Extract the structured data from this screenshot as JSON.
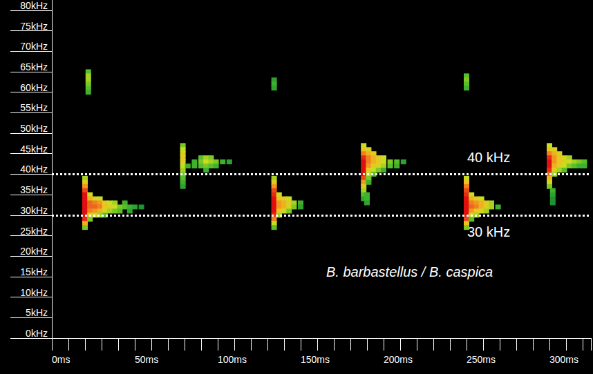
{
  "chart_data": {
    "type": "heatmap",
    "annotation": "B. barbastellus / B. caspica",
    "hlines": [
      {
        "y": 40,
        "label": "40 kHz"
      },
      {
        "y": 30,
        "label": "30 kHz"
      }
    ],
    "xlim": [
      0,
      325
    ],
    "xticks": [
      {
        "value": 0,
        "label": "0ms"
      },
      {
        "value": 50,
        "label": "50ms"
      },
      {
        "value": 100,
        "label": "100ms"
      },
      {
        "value": 150,
        "label": "150ms"
      },
      {
        "value": 200,
        "label": "200ms"
      },
      {
        "value": 250,
        "label": "250ms"
      },
      {
        "value": 300,
        "label": "300ms"
      }
    ],
    "ylim": [
      0,
      82.5
    ],
    "yticks": [
      {
        "value": 0,
        "label": "0kHz"
      },
      {
        "value": 5,
        "label": "5kHz"
      },
      {
        "value": 10,
        "label": "10kHz"
      },
      {
        "value": 15,
        "label": "15kHz"
      },
      {
        "value": 20,
        "label": "20kHz"
      },
      {
        "value": 25,
        "label": "25kHz"
      },
      {
        "value": 30,
        "label": "30kHz"
      },
      {
        "value": 35,
        "label": "35kHz"
      },
      {
        "value": 40,
        "label": "40kHz"
      },
      {
        "value": 45,
        "label": "45kHz"
      },
      {
        "value": 50,
        "label": "50kHz"
      },
      {
        "value": 55,
        "label": "55kHz"
      },
      {
        "value": 60,
        "label": "60kHz"
      },
      {
        "value": 65,
        "label": "65kHz"
      },
      {
        "value": 70,
        "label": "70kHz"
      },
      {
        "value": 75,
        "label": "75kHz"
      },
      {
        "value": 80,
        "label": "80kHz"
      }
    ],
    "zlim": [
      0,
      1
    ],
    "cells": [
      [
        20,
        39,
        0.45
      ],
      [
        20,
        38,
        0.6
      ],
      [
        20,
        37,
        0.75
      ],
      [
        20,
        36,
        0.9
      ],
      [
        20,
        35,
        1
      ],
      [
        20,
        34,
        1
      ],
      [
        20,
        33,
        1
      ],
      [
        20,
        32,
        1
      ],
      [
        20,
        31,
        1
      ],
      [
        20,
        30,
        1
      ],
      [
        20,
        29,
        0.95
      ],
      [
        20,
        28,
        0.7
      ],
      [
        20,
        27,
        0.4
      ],
      [
        23,
        35,
        0.5
      ],
      [
        23,
        34,
        0.7
      ],
      [
        23,
        33,
        0.85
      ],
      [
        23,
        32,
        0.85
      ],
      [
        23,
        31,
        0.8
      ],
      [
        23,
        30,
        0.6
      ],
      [
        23,
        29,
        0.4
      ],
      [
        26,
        34,
        0.55
      ],
      [
        26,
        33,
        0.8
      ],
      [
        26,
        32,
        0.85
      ],
      [
        26,
        31,
        0.75
      ],
      [
        26,
        30,
        0.5
      ],
      [
        29,
        34,
        0.5
      ],
      [
        29,
        33,
        0.75
      ],
      [
        29,
        32,
        0.8
      ],
      [
        29,
        31,
        0.7
      ],
      [
        29,
        30,
        0.45
      ],
      [
        32,
        33,
        0.6
      ],
      [
        32,
        32,
        0.65
      ],
      [
        32,
        31,
        0.55
      ],
      [
        32,
        30,
        0.35
      ],
      [
        35,
        33,
        0.5
      ],
      [
        35,
        32,
        0.55
      ],
      [
        35,
        31,
        0.45
      ],
      [
        38,
        33,
        0.45
      ],
      [
        38,
        32,
        0.5
      ],
      [
        38,
        31,
        0.4
      ],
      [
        41,
        32,
        0.4
      ],
      [
        41,
        31,
        0.35
      ],
      [
        44,
        33,
        0.3
      ],
      [
        44,
        32,
        0.35
      ],
      [
        47,
        32,
        0.3
      ],
      [
        47,
        31,
        0.25
      ],
      [
        50,
        32,
        0.25
      ],
      [
        54,
        32,
        0.2
      ],
      [
        22,
        65,
        0.35
      ],
      [
        22,
        64,
        0.45
      ],
      [
        22,
        63,
        0.45
      ],
      [
        22,
        62,
        0.4
      ],
      [
        22,
        61,
        0.35
      ],
      [
        22,
        60,
        0.3
      ],
      [
        79,
        47,
        0.4
      ],
      [
        79,
        46,
        0.5
      ],
      [
        79,
        45,
        0.55
      ],
      [
        79,
        44,
        0.6
      ],
      [
        79,
        43,
        0.55
      ],
      [
        79,
        42,
        0.5
      ],
      [
        79,
        41,
        0.45
      ],
      [
        79,
        40,
        0.4
      ],
      [
        79,
        39,
        0.35
      ],
      [
        79,
        38,
        0.3
      ],
      [
        79,
        37,
        0.25
      ],
      [
        82,
        42,
        0.3
      ],
      [
        86,
        43,
        0.3
      ],
      [
        86,
        42,
        0.3
      ],
      [
        90,
        44,
        0.35
      ],
      [
        90,
        43,
        0.4
      ],
      [
        90,
        42,
        0.35
      ],
      [
        93,
        44,
        0.45
      ],
      [
        93,
        43,
        0.5
      ],
      [
        93,
        42,
        0.4
      ],
      [
        93,
        41,
        0.3
      ],
      [
        96,
        44,
        0.4
      ],
      [
        96,
        43,
        0.45
      ],
      [
        96,
        42,
        0.35
      ],
      [
        99,
        43,
        0.4
      ],
      [
        99,
        42,
        0.3
      ],
      [
        103,
        43,
        0.3
      ],
      [
        107,
        43,
        0.25
      ],
      [
        134,
        39,
        0.45
      ],
      [
        134,
        38,
        0.6
      ],
      [
        134,
        37,
        0.75
      ],
      [
        134,
        36,
        0.9
      ],
      [
        134,
        35,
        0.95
      ],
      [
        134,
        34,
        1
      ],
      [
        134,
        33,
        1
      ],
      [
        134,
        32,
        1
      ],
      [
        134,
        31,
        1
      ],
      [
        134,
        30,
        0.95
      ],
      [
        134,
        29,
        0.8
      ],
      [
        134,
        28,
        0.5
      ],
      [
        134,
        27,
        0.35
      ],
      [
        137,
        35,
        0.5
      ],
      [
        137,
        34,
        0.65
      ],
      [
        137,
        33,
        0.75
      ],
      [
        137,
        32,
        0.75
      ],
      [
        137,
        31,
        0.65
      ],
      [
        137,
        30,
        0.45
      ],
      [
        140,
        34,
        0.6
      ],
      [
        140,
        33,
        0.7
      ],
      [
        140,
        32,
        0.7
      ],
      [
        140,
        31,
        0.55
      ],
      [
        143,
        34,
        0.5
      ],
      [
        143,
        33,
        0.6
      ],
      [
        143,
        32,
        0.55
      ],
      [
        143,
        31,
        0.4
      ],
      [
        146,
        33,
        0.45
      ],
      [
        146,
        32,
        0.4
      ],
      [
        150,
        33,
        0.3
      ],
      [
        150,
        32,
        0.25
      ],
      [
        134,
        63,
        0.25
      ],
      [
        134,
        62,
        0.3
      ],
      [
        134,
        61,
        0.25
      ],
      [
        188,
        47,
        0.5
      ],
      [
        188,
        46,
        0.65
      ],
      [
        188,
        45,
        0.8
      ],
      [
        188,
        44,
        0.95
      ],
      [
        188,
        43,
        1
      ],
      [
        188,
        42,
        1
      ],
      [
        188,
        41,
        1
      ],
      [
        188,
        40,
        1
      ],
      [
        188,
        39,
        0.9
      ],
      [
        188,
        38,
        0.75
      ],
      [
        188,
        37,
        0.6
      ],
      [
        188,
        36,
        0.45
      ],
      [
        188,
        35,
        0.35
      ],
      [
        188,
        34,
        0.25
      ],
      [
        191,
        46,
        0.55
      ],
      [
        191,
        45,
        0.7
      ],
      [
        191,
        44,
        0.8
      ],
      [
        191,
        43,
        0.8
      ],
      [
        191,
        42,
        0.75
      ],
      [
        191,
        41,
        0.6
      ],
      [
        191,
        40,
        0.5
      ],
      [
        191,
        39,
        0.4
      ],
      [
        191,
        38,
        0.3
      ],
      [
        194,
        45,
        0.6
      ],
      [
        194,
        44,
        0.7
      ],
      [
        194,
        43,
        0.7
      ],
      [
        194,
        42,
        0.6
      ],
      [
        194,
        41,
        0.5
      ],
      [
        194,
        40,
        0.35
      ],
      [
        197,
        44,
        0.6
      ],
      [
        197,
        43,
        0.6
      ],
      [
        197,
        42,
        0.55
      ],
      [
        197,
        41,
        0.4
      ],
      [
        200,
        44,
        0.5
      ],
      [
        200,
        43,
        0.5
      ],
      [
        200,
        42,
        0.45
      ],
      [
        200,
        41,
        0.3
      ],
      [
        204,
        43,
        0.4
      ],
      [
        204,
        42,
        0.35
      ],
      [
        208,
        43,
        0.35
      ],
      [
        208,
        42,
        0.3
      ],
      [
        212,
        43,
        0.25
      ],
      [
        190,
        35,
        0.3
      ],
      [
        190,
        34,
        0.3
      ],
      [
        190,
        33,
        0.25
      ],
      [
        250,
        39,
        0.5
      ],
      [
        250,
        38,
        0.65
      ],
      [
        250,
        37,
        0.8
      ],
      [
        250,
        36,
        0.9
      ],
      [
        250,
        35,
        0.95
      ],
      [
        250,
        34,
        1
      ],
      [
        250,
        33,
        1
      ],
      [
        250,
        32,
        1
      ],
      [
        250,
        31,
        1
      ],
      [
        250,
        30,
        1
      ],
      [
        250,
        29,
        0.9
      ],
      [
        250,
        28,
        0.65
      ],
      [
        250,
        27,
        0.4
      ],
      [
        253,
        35,
        0.5
      ],
      [
        253,
        34,
        0.7
      ],
      [
        253,
        33,
        0.8
      ],
      [
        253,
        32,
        0.85
      ],
      [
        253,
        31,
        0.75
      ],
      [
        253,
        30,
        0.55
      ],
      [
        253,
        29,
        0.35
      ],
      [
        256,
        34,
        0.6
      ],
      [
        256,
        33,
        0.75
      ],
      [
        256,
        32,
        0.8
      ],
      [
        256,
        31,
        0.65
      ],
      [
        256,
        30,
        0.45
      ],
      [
        259,
        34,
        0.5
      ],
      [
        259,
        33,
        0.7
      ],
      [
        259,
        32,
        0.7
      ],
      [
        259,
        31,
        0.55
      ],
      [
        262,
        33,
        0.6
      ],
      [
        262,
        32,
        0.6
      ],
      [
        262,
        31,
        0.45
      ],
      [
        265,
        33,
        0.45
      ],
      [
        265,
        32,
        0.45
      ],
      [
        269,
        32,
        0.3
      ],
      [
        250,
        64,
        0.35
      ],
      [
        250,
        63,
        0.4
      ],
      [
        250,
        62,
        0.35
      ],
      [
        250,
        61,
        0.3
      ],
      [
        300,
        47,
        0.5
      ],
      [
        300,
        46,
        0.65
      ],
      [
        300,
        45,
        0.8
      ],
      [
        300,
        44,
        0.95
      ],
      [
        300,
        43,
        1
      ],
      [
        300,
        42,
        1
      ],
      [
        300,
        41,
        0.95
      ],
      [
        300,
        40,
        0.85
      ],
      [
        300,
        39,
        0.7
      ],
      [
        300,
        38,
        0.55
      ],
      [
        300,
        37,
        0.4
      ],
      [
        303,
        46,
        0.55
      ],
      [
        303,
        45,
        0.7
      ],
      [
        303,
        44,
        0.75
      ],
      [
        303,
        43,
        0.75
      ],
      [
        303,
        42,
        0.7
      ],
      [
        303,
        41,
        0.6
      ],
      [
        303,
        40,
        0.45
      ],
      [
        306,
        45,
        0.6
      ],
      [
        306,
        44,
        0.65
      ],
      [
        306,
        43,
        0.65
      ],
      [
        306,
        42,
        0.6
      ],
      [
        306,
        41,
        0.45
      ],
      [
        309,
        44,
        0.55
      ],
      [
        309,
        43,
        0.55
      ],
      [
        309,
        42,
        0.5
      ],
      [
        309,
        41,
        0.35
      ],
      [
        312,
        44,
        0.45
      ],
      [
        312,
        43,
        0.5
      ],
      [
        312,
        42,
        0.4
      ],
      [
        315,
        43,
        0.45
      ],
      [
        315,
        42,
        0.35
      ],
      [
        318,
        43,
        0.4
      ],
      [
        318,
        42,
        0.3
      ],
      [
        321,
        43,
        0.35
      ],
      [
        321,
        42,
        0.3
      ],
      [
        302,
        36,
        0.3
      ],
      [
        302,
        35,
        0.25
      ],
      [
        302,
        34,
        0.2
      ],
      [
        302,
        33,
        0.2
      ]
    ]
  }
}
